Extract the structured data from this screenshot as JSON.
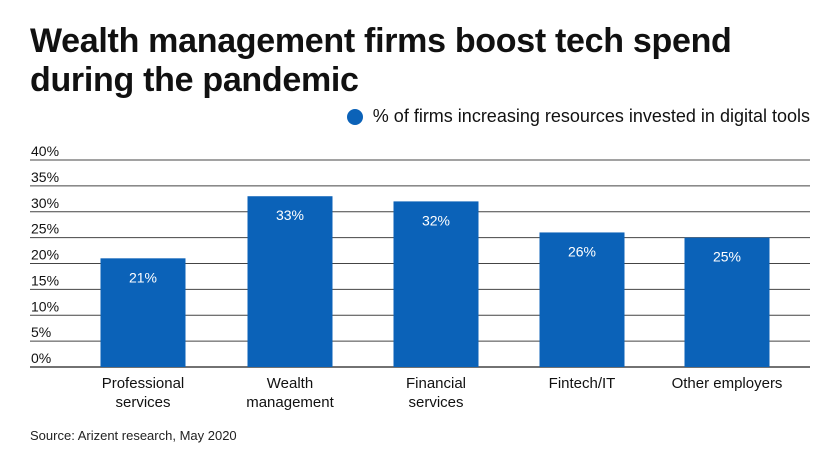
{
  "title": "Wealth management firms boost tech spend during the pandemic",
  "source": "Source: Arizent research, May 2020",
  "colors": {
    "bar": "#0b62b8",
    "grid": "#444444",
    "label": "#ffffff"
  },
  "chart_data": {
    "type": "bar",
    "categories": [
      [
        "Professional",
        "services"
      ],
      [
        "Wealth",
        "management"
      ],
      [
        "Financial",
        "services"
      ],
      [
        "Fintech/IT"
      ],
      [
        "Other employers"
      ]
    ],
    "series": [
      {
        "name": "% of firms increasing resources invested in digital tools",
        "values": [
          21,
          33,
          32,
          26,
          25
        ]
      }
    ],
    "data_labels": [
      "21%",
      "33%",
      "32%",
      "26%",
      "25%"
    ],
    "y_ticks": [
      "0%",
      "5%",
      "10%",
      "15%",
      "20%",
      "25%",
      "30%",
      "35%",
      "40%"
    ],
    "ylim": [
      0,
      40
    ],
    "grid": true,
    "legend": "top-right"
  }
}
